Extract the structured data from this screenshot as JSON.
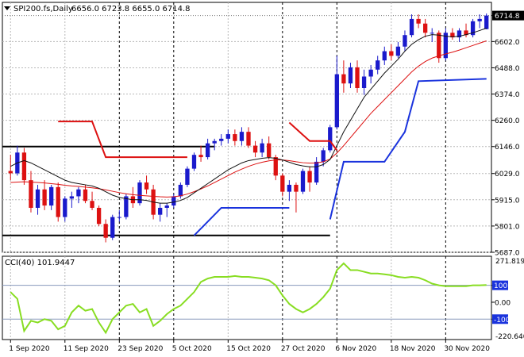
{
  "header": {
    "symbol": "SPI200.fs,Daily",
    "ohlc": "6656.0 6723.8 6655.0 6714.8"
  },
  "indicator": {
    "name": "CCI(40) 101.9447",
    "scale_top": "271.8193",
    "scale_bottom": "-220.640"
  },
  "colors": {
    "bull": "#1a1acc",
    "bear": "#dd1111",
    "ma_fast": "#111111",
    "ma_slow": "#dd1111",
    "stop_red": "#dd1111",
    "stop_blue": "#1a33dd",
    "cci": "#88dd22",
    "grid": "#b8b8b8"
  },
  "chart_data": [
    {
      "type": "candlestick",
      "ylim": [
        5687,
        6772
      ],
      "y_ticks": [
        "6714.8",
        "6602.0",
        "6488.0",
        "6374.0",
        "6260.0",
        "6146.0",
        "6029.0",
        "5915.0",
        "5801.0",
        "5687.0"
      ],
      "last_price": "6714.8",
      "x_labels": [
        "1 Sep 2020",
        "11 Sep 2020",
        "23 Sep 2020",
        "5 Oct 2020",
        "15 Oct 2020",
        "27 Oct 2020",
        "6 Nov 2020",
        "18 Nov 2020",
        "30 Nov 2020"
      ],
      "x_label_index": [
        0,
        8,
        16,
        24,
        32,
        40,
        48,
        56,
        64
      ],
      "candles": [
        [
          6040,
          6110,
          6000,
          6030
        ],
        [
          6030,
          6150,
          6020,
          6120
        ],
        [
          6120,
          6140,
          5980,
          6000
        ],
        [
          6000,
          6040,
          5860,
          5880
        ],
        [
          5880,
          5980,
          5850,
          5960
        ],
        [
          5960,
          6000,
          5870,
          5890
        ],
        [
          5890,
          5980,
          5870,
          5970
        ],
        [
          5970,
          5990,
          5820,
          5840
        ],
        [
          5840,
          5930,
          5820,
          5920
        ],
        [
          5920,
          5950,
          5880,
          5930
        ],
        [
          5930,
          5970,
          5900,
          5960
        ],
        [
          5960,
          5980,
          5900,
          5910
        ],
        [
          5910,
          5950,
          5870,
          5880
        ],
        [
          5880,
          5890,
          5800,
          5810
        ],
        [
          5810,
          5830,
          5730,
          5750
        ],
        [
          5750,
          5850,
          5740,
          5840
        ],
        [
          5840,
          5870,
          5820,
          5840
        ],
        [
          5840,
          5940,
          5830,
          5930
        ],
        [
          5930,
          5970,
          5880,
          5900
        ],
        [
          5900,
          6000,
          5890,
          5990
        ],
        [
          5990,
          6020,
          5940,
          5960
        ],
        [
          5960,
          5980,
          5830,
          5850
        ],
        [
          5850,
          5900,
          5820,
          5880
        ],
        [
          5880,
          5900,
          5840,
          5890
        ],
        [
          5890,
          5940,
          5880,
          5930
        ],
        [
          5930,
          5990,
          5920,
          5980
        ],
        [
          5980,
          6060,
          5970,
          6050
        ],
        [
          6050,
          6120,
          6040,
          6110
        ],
        [
          6110,
          6150,
          6080,
          6100
        ],
        [
          6100,
          6180,
          6090,
          6160
        ],
        [
          6160,
          6180,
          6130,
          6170
        ],
        [
          6170,
          6200,
          6150,
          6180
        ],
        [
          6180,
          6220,
          6160,
          6200
        ],
        [
          6200,
          6220,
          6150,
          6170
        ],
        [
          6170,
          6230,
          6150,
          6210
        ],
        [
          6210,
          6230,
          6140,
          6150
        ],
        [
          6150,
          6170,
          6100,
          6120
        ],
        [
          6120,
          6180,
          6100,
          6160
        ],
        [
          6160,
          6190,
          6090,
          6100
        ],
        [
          6100,
          6110,
          6000,
          6020
        ],
        [
          6020,
          6030,
          5930,
          5950
        ],
        [
          5950,
          6000,
          5910,
          5980
        ],
        [
          5980,
          5990,
          5860,
          5950
        ],
        [
          5950,
          6050,
          5940,
          6040
        ],
        [
          6040,
          6060,
          5950,
          5990
        ],
        [
          5990,
          6100,
          5980,
          6080
        ],
        [
          6080,
          6140,
          6060,
          6130
        ],
        [
          6130,
          6240,
          6120,
          6230
        ],
        [
          6230,
          6540,
          6220,
          6460
        ],
        [
          6460,
          6520,
          6380,
          6420
        ],
        [
          6420,
          6510,
          6400,
          6490
        ],
        [
          6490,
          6520,
          6380,
          6400
        ],
        [
          6400,
          6480,
          6370,
          6450
        ],
        [
          6450,
          6500,
          6420,
          6480
        ],
        [
          6480,
          6540,
          6460,
          6520
        ],
        [
          6520,
          6580,
          6500,
          6560
        ],
        [
          6560,
          6590,
          6520,
          6540
        ],
        [
          6540,
          6600,
          6530,
          6580
        ],
        [
          6580,
          6650,
          6560,
          6630
        ],
        [
          6630,
          6720,
          6620,
          6700
        ],
        [
          6700,
          6720,
          6660,
          6680
        ],
        [
          6680,
          6700,
          6620,
          6640
        ],
        [
          6640,
          6660,
          6600,
          6640
        ],
        [
          6640,
          6650,
          6510,
          6530
        ],
        [
          6530,
          6660,
          6520,
          6640
        ],
        [
          6640,
          6660,
          6610,
          6620
        ],
        [
          6620,
          6660,
          6600,
          6650
        ],
        [
          6650,
          6680,
          6620,
          6630
        ],
        [
          6630,
          6700,
          6620,
          6690
        ],
        [
          6690,
          6720,
          6660,
          6700
        ],
        [
          6656,
          6723.8,
          6655,
          6714.8
        ]
      ],
      "ma_fast": [
        6060,
        6075,
        6085,
        6075,
        6060,
        6045,
        6030,
        6015,
        6000,
        5990,
        5985,
        5980,
        5975,
        5965,
        5950,
        5935,
        5925,
        5920,
        5915,
        5915,
        5912,
        5905,
        5900,
        5900,
        5905,
        5912,
        5925,
        5945,
        5965,
        5985,
        6005,
        6025,
        6045,
        6060,
        6075,
        6085,
        6090,
        6095,
        6098,
        6095,
        6088,
        6078,
        6068,
        6062,
        6058,
        6058,
        6068,
        6090,
        6150,
        6210,
        6260,
        6310,
        6360,
        6395,
        6430,
        6465,
        6495,
        6525,
        6560,
        6590,
        6610,
        6625,
        6632,
        6630,
        6625,
        6622,
        6625,
        6632,
        6640,
        6650,
        6660
      ],
      "ma_slow": [
        5990,
        5992,
        5993,
        5992,
        5990,
        5988,
        5985,
        5982,
        5978,
        5975,
        5973,
        5970,
        5967,
        5963,
        5958,
        5952,
        5946,
        5941,
        5937,
        5934,
        5932,
        5930,
        5928,
        5927,
        5928,
        5932,
        5940,
        5950,
        5962,
        5975,
        5990,
        6005,
        6020,
        6035,
        6048,
        6060,
        6070,
        6078,
        6084,
        6088,
        6088,
        6085,
        6080,
        6076,
        6074,
        6075,
        6080,
        6092,
        6118,
        6150,
        6185,
        6220,
        6255,
        6290,
        6320,
        6350,
        6380,
        6410,
        6440,
        6470,
        6495,
        6515,
        6530,
        6540,
        6548,
        6556,
        6565,
        6575,
        6585,
        6595,
        6605
      ],
      "stop_red": [
        null,
        null,
        null,
        null,
        null,
        null,
        null,
        null,
        null,
        null,
        null,
        null,
        null,
        null,
        null,
        null,
        null,
        null,
        null,
        null,
        null,
        null,
        null,
        null,
        null,
        null,
        null,
        null,
        null,
        null,
        null,
        null,
        null,
        null,
        null,
        null,
        null,
        null,
        null,
        null,
        null,
        null,
        null,
        null,
        null,
        null,
        null,
        null,
        null,
        null,
        null,
        null,
        null,
        null,
        null,
        null,
        null,
        null,
        null,
        null,
        null,
        null,
        null,
        null,
        null,
        null,
        null,
        null,
        null,
        null,
        null
      ],
      "cci": [
        60,
        20,
        -170,
        -110,
        -120,
        -100,
        -110,
        -160,
        -140,
        -60,
        -20,
        -50,
        -40,
        -120,
        -180,
        -100,
        -60,
        -20,
        -10,
        -60,
        -40,
        -140,
        -110,
        -70,
        -40,
        -20,
        20,
        60,
        120,
        140,
        150,
        150,
        150,
        155,
        150,
        150,
        145,
        140,
        130,
        100,
        40,
        -10,
        -40,
        -60,
        -40,
        -10,
        30,
        80,
        190,
        230,
        190,
        190,
        180,
        170,
        170,
        165,
        160,
        150,
        145,
        150,
        145,
        130,
        110,
        100,
        95,
        95,
        95,
        95,
        100,
        100,
        101.9447
      ],
      "cci_ylim": [
        -220.64,
        271.8193
      ],
      "cci_ticks": [
        "100",
        "0.00",
        "-100"
      ]
    }
  ]
}
